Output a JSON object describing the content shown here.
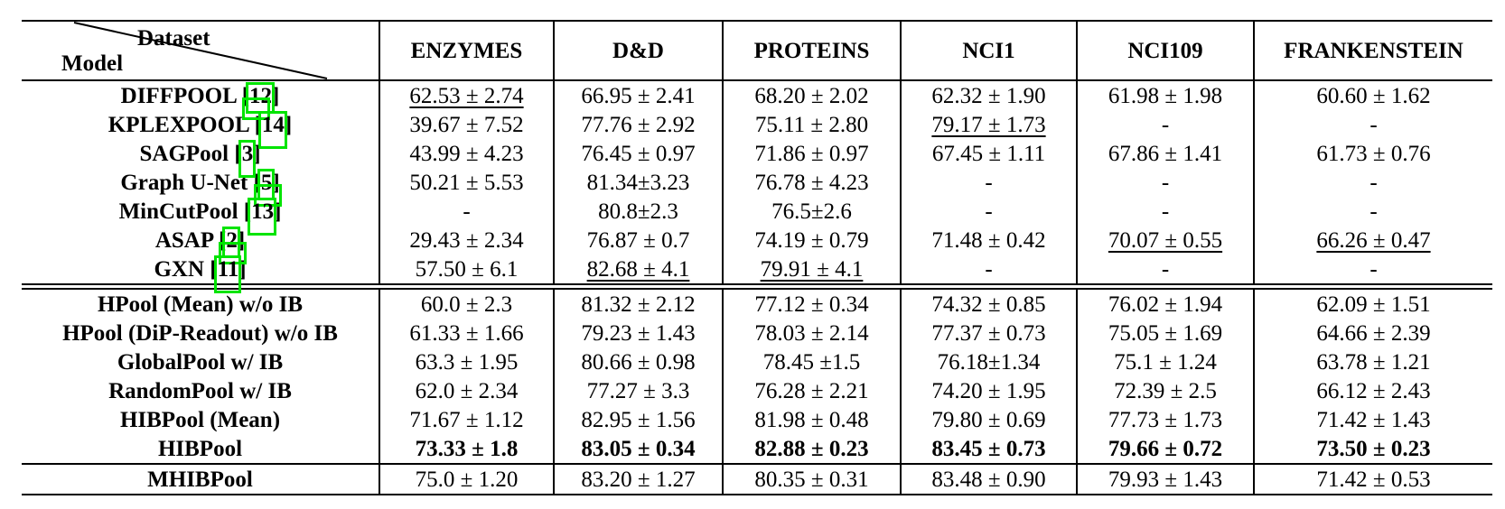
{
  "table": {
    "corner": {
      "top_label": "Dataset",
      "bottom_label": "Model"
    },
    "columns": [
      "ENZYMES",
      "D&D",
      "PROTEINS",
      "NCI1",
      "NCI109",
      "FRANKENSTEIN"
    ],
    "link_box_color": "#00e400",
    "sections": [
      {
        "rows": [
          {
            "model": "DIFFPOOL",
            "citation": "12",
            "citation_style": "hang",
            "values": [
              "62.53 ± 2.74",
              "66.95 ± 2.41",
              "68.20 ± 2.02",
              "62.32 ± 1.90",
              "61.98 ± 1.98",
              "60.60 ± 1.62"
            ],
            "underline_cols": [
              0
            ]
          },
          {
            "model": "KPLEXPOOL",
            "citation": "14",
            "citation_style": "tall",
            "values": [
              "39.67 ± 7.52",
              "77.76 ± 2.92",
              "75.11 ± 2.80",
              "79.17 ± 1.73",
              "-",
              "-"
            ],
            "underline_cols": [
              3
            ]
          },
          {
            "model": "SAGPool",
            "citation": "3",
            "citation_style": "tall",
            "values": [
              "43.99 ± 4.23",
              "76.45 ± 0.97",
              "71.86 ± 0.97",
              "67.45 ± 1.11",
              "67.86 ± 1.41",
              "61.73 ± 0.76"
            ],
            "underline_cols": []
          },
          {
            "model": "Graph U-Net",
            "citation": "5",
            "citation_style": "hang",
            "values": [
              "50.21 ± 5.53",
              "81.34±3.23",
              "76.78 ± 4.23",
              "-",
              "-",
              "-"
            ],
            "underline_cols": []
          },
          {
            "model": "MinCutPool",
            "citation": "13",
            "citation_style": "tall",
            "values": [
              "-",
              "80.8±2.3",
              "76.5±2.6",
              "-",
              "-",
              "-"
            ],
            "underline_cols": []
          },
          {
            "model": "ASAP",
            "citation": "2",
            "citation_style": "hang",
            "values": [
              "29.43 ± 2.34",
              "76.87 ± 0.7",
              "74.19 ± 0.79",
              "71.48 ± 0.42",
              "70.07 ± 0.55",
              "66.26 ± 0.47"
            ],
            "underline_cols": [
              4,
              5
            ]
          },
          {
            "model": "GXN",
            "citation": "11",
            "citation_style": "tall",
            "values": [
              "57.50 ± 6.1",
              "82.68 ± 4.1",
              "79.91 ± 4.1",
              "-",
              "-",
              "-"
            ],
            "underline_cols": [
              1,
              2
            ]
          }
        ]
      },
      {
        "rule": "double",
        "rows": [
          {
            "model": "HPool (Mean) w/o IB",
            "values": [
              "60.0 ± 2.3",
              "81.32 ± 2.12",
              "77.12 ± 0.34",
              "74.32 ± 0.85",
              "76.02 ± 1.94",
              "62.09 ± 1.51"
            ],
            "underline_cols": []
          },
          {
            "model": "HPool (DiP-Readout) w/o IB",
            "values": [
              "61.33 ± 1.66",
              "79.23 ± 1.43",
              "78.03 ± 2.14",
              "77.37 ± 0.73",
              "75.05 ± 1.69",
              "64.66 ± 2.39"
            ],
            "underline_cols": []
          },
          {
            "model": "GlobalPool w/ IB",
            "values": [
              "63.3 ± 1.95",
              "80.66 ± 0.98",
              "78.45 ±1.5",
              "76.18±1.34",
              "75.1 ± 1.24",
              "63.78 ± 1.21"
            ],
            "underline_cols": []
          },
          {
            "model": "RandomPool w/ IB",
            "values": [
              "62.0 ± 2.34",
              "77.27 ± 3.3",
              "76.28 ± 2.21",
              "74.20 ± 1.95",
              "72.39 ± 2.5",
              "66.12 ± 2.43"
            ],
            "underline_cols": []
          },
          {
            "model": "HIBPool (Mean)",
            "values": [
              "71.67 ± 1.12",
              "82.95 ± 1.56",
              "81.98 ± 0.48",
              "79.80 ± 0.69",
              "77.73 ± 1.73",
              "71.42 ± 1.43"
            ],
            "underline_cols": []
          },
          {
            "model": "HIBPool",
            "bold_values": true,
            "values": [
              "73.33 ± 1.8",
              "83.05 ± 0.34",
              "82.88 ± 0.23",
              "83.45 ± 0.73",
              "79.66 ± 0.72",
              "73.50 ± 0.23"
            ],
            "underline_cols": []
          }
        ]
      },
      {
        "rule": "single",
        "rows": [
          {
            "model": "MHIBPool",
            "values": [
              "75.0 ± 1.20",
              "83.20 ± 1.27",
              "80.35 ± 0.31",
              "83.48 ± 0.90",
              "79.93 ± 1.43",
              "71.42 ± 0.53"
            ],
            "underline_cols": []
          }
        ]
      }
    ]
  }
}
